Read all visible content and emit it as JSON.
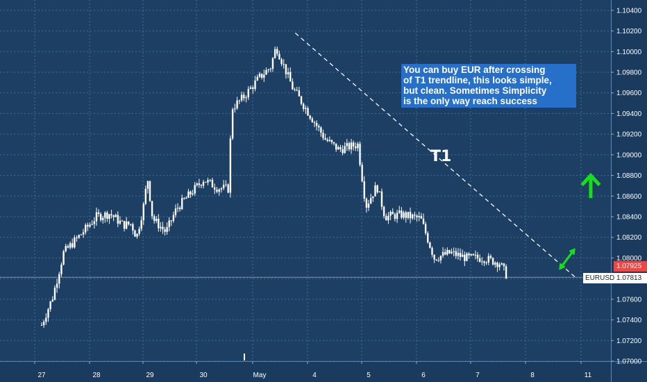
{
  "chart_data": {
    "type": "candlestick",
    "symbol": "EURUSD",
    "x_ticks": [
      "27",
      "28",
      "29",
      "30",
      "May",
      "4",
      "5",
      "6",
      "7",
      "8",
      "11"
    ],
    "y_ticks": [
      "1.10400",
      "1.10200",
      "1.10000",
      "1.09800",
      "1.09600",
      "1.09400",
      "1.09200",
      "1.09000",
      "1.08800",
      "1.08600",
      "1.08400",
      "1.08200",
      "1.08000",
      "1.07800",
      "1.07600",
      "1.07400",
      "1.07200",
      "1.07000"
    ],
    "ylim": [
      1.07,
      1.105
    ],
    "grid": true,
    "close_path": [
      [
        0,
        1.0735
      ],
      [
        0.2,
        1.0762
      ],
      [
        0.4,
        1.0805
      ],
      [
        0.7,
        1.0822
      ],
      [
        1.0,
        1.084
      ],
      [
        1.25,
        1.0843
      ],
      [
        1.5,
        1.0832
      ],
      [
        1.65,
        1.0833
      ],
      [
        1.75,
        1.082
      ],
      [
        1.9,
        1.0855
      ],
      [
        1.95,
        1.088
      ],
      [
        2.05,
        1.0838
      ],
      [
        2.3,
        1.0825
      ],
      [
        2.5,
        1.0848
      ],
      [
        2.75,
        1.0862
      ],
      [
        3.0,
        1.0876
      ],
      [
        3.25,
        1.0868
      ],
      [
        3.45,
        1.0867
      ],
      [
        3.5,
        1.0945
      ],
      [
        3.7,
        1.0955
      ],
      [
        4.0,
        1.0975
      ],
      [
        4.2,
        1.0985
      ],
      [
        4.3,
        1.1005
      ],
      [
        4.6,
        1.0965
      ],
      [
        4.9,
        1.094
      ],
      [
        5.2,
        1.0915
      ],
      [
        5.45,
        1.0905
      ],
      [
        5.8,
        1.091
      ],
      [
        5.95,
        1.085
      ],
      [
        6.15,
        1.087
      ],
      [
        6.3,
        1.084
      ],
      [
        6.6,
        1.0842
      ],
      [
        6.95,
        1.0838
      ],
      [
        7.2,
        1.08
      ],
      [
        7.5,
        1.0805
      ],
      [
        7.8,
        1.08
      ],
      [
        8.1,
        1.08
      ],
      [
        8.4,
        1.0795
      ],
      [
        8.55,
        1.07813
      ]
    ],
    "trendline": {
      "label": "T1",
      "from": [
        4.65,
        1.1018
      ],
      "to": [
        9.8,
        1.078
      ]
    },
    "current_price_line": 1.07813,
    "last_price_labels": {
      "red": "1.07925",
      "white": "1.07813"
    },
    "annotation_lines": [
      "You can buy EUR after crossing",
      "of T1 trendline, this looks simple,",
      "but clean. Sometimes Simplicity",
      "is the only way reach success"
    ],
    "arrows": [
      {
        "kind": "double",
        "from": [
          9.5,
          1.079
        ],
        "to": [
          9.75,
          1.0808
        ]
      },
      {
        "kind": "up",
        "x": 10.05,
        "y": 1.0858,
        "y_top": 1.088
      }
    ]
  },
  "colors": {
    "background": "#1c3f63",
    "grid": "#3c6f9f",
    "candles": "#ffffff",
    "annotation_bg": "#2770c9",
    "accent_green": "#18e018",
    "price_red": "#e84a4a"
  }
}
